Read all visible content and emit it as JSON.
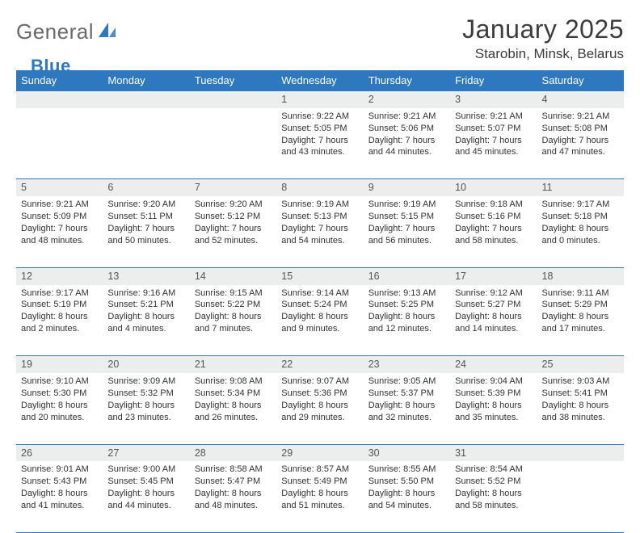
{
  "brand": {
    "part1": "General",
    "part2": "Blue"
  },
  "title": "January 2025",
  "location": "Starobin, Minsk, Belarus",
  "colors": {
    "accent": "#2d78bf",
    "header_bg": "#2d78bf",
    "daynum_bg": "#eceded",
    "text": "#333333"
  },
  "weekdays": [
    "Sunday",
    "Monday",
    "Tuesday",
    "Wednesday",
    "Thursday",
    "Friday",
    "Saturday"
  ],
  "weeks": [
    [
      null,
      null,
      null,
      {
        "n": "1",
        "sr": "Sunrise: 9:22 AM",
        "ss": "Sunset: 5:05 PM",
        "d1": "Daylight: 7 hours",
        "d2": "and 43 minutes."
      },
      {
        "n": "2",
        "sr": "Sunrise: 9:21 AM",
        "ss": "Sunset: 5:06 PM",
        "d1": "Daylight: 7 hours",
        "d2": "and 44 minutes."
      },
      {
        "n": "3",
        "sr": "Sunrise: 9:21 AM",
        "ss": "Sunset: 5:07 PM",
        "d1": "Daylight: 7 hours",
        "d2": "and 45 minutes."
      },
      {
        "n": "4",
        "sr": "Sunrise: 9:21 AM",
        "ss": "Sunset: 5:08 PM",
        "d1": "Daylight: 7 hours",
        "d2": "and 47 minutes."
      }
    ],
    [
      {
        "n": "5",
        "sr": "Sunrise: 9:21 AM",
        "ss": "Sunset: 5:09 PM",
        "d1": "Daylight: 7 hours",
        "d2": "and 48 minutes."
      },
      {
        "n": "6",
        "sr": "Sunrise: 9:20 AM",
        "ss": "Sunset: 5:11 PM",
        "d1": "Daylight: 7 hours",
        "d2": "and 50 minutes."
      },
      {
        "n": "7",
        "sr": "Sunrise: 9:20 AM",
        "ss": "Sunset: 5:12 PM",
        "d1": "Daylight: 7 hours",
        "d2": "and 52 minutes."
      },
      {
        "n": "8",
        "sr": "Sunrise: 9:19 AM",
        "ss": "Sunset: 5:13 PM",
        "d1": "Daylight: 7 hours",
        "d2": "and 54 minutes."
      },
      {
        "n": "9",
        "sr": "Sunrise: 9:19 AM",
        "ss": "Sunset: 5:15 PM",
        "d1": "Daylight: 7 hours",
        "d2": "and 56 minutes."
      },
      {
        "n": "10",
        "sr": "Sunrise: 9:18 AM",
        "ss": "Sunset: 5:16 PM",
        "d1": "Daylight: 7 hours",
        "d2": "and 58 minutes."
      },
      {
        "n": "11",
        "sr": "Sunrise: 9:17 AM",
        "ss": "Sunset: 5:18 PM",
        "d1": "Daylight: 8 hours",
        "d2": "and 0 minutes."
      }
    ],
    [
      {
        "n": "12",
        "sr": "Sunrise: 9:17 AM",
        "ss": "Sunset: 5:19 PM",
        "d1": "Daylight: 8 hours",
        "d2": "and 2 minutes."
      },
      {
        "n": "13",
        "sr": "Sunrise: 9:16 AM",
        "ss": "Sunset: 5:21 PM",
        "d1": "Daylight: 8 hours",
        "d2": "and 4 minutes."
      },
      {
        "n": "14",
        "sr": "Sunrise: 9:15 AM",
        "ss": "Sunset: 5:22 PM",
        "d1": "Daylight: 8 hours",
        "d2": "and 7 minutes."
      },
      {
        "n": "15",
        "sr": "Sunrise: 9:14 AM",
        "ss": "Sunset: 5:24 PM",
        "d1": "Daylight: 8 hours",
        "d2": "and 9 minutes."
      },
      {
        "n": "16",
        "sr": "Sunrise: 9:13 AM",
        "ss": "Sunset: 5:25 PM",
        "d1": "Daylight: 8 hours",
        "d2": "and 12 minutes."
      },
      {
        "n": "17",
        "sr": "Sunrise: 9:12 AM",
        "ss": "Sunset: 5:27 PM",
        "d1": "Daylight: 8 hours",
        "d2": "and 14 minutes."
      },
      {
        "n": "18",
        "sr": "Sunrise: 9:11 AM",
        "ss": "Sunset: 5:29 PM",
        "d1": "Daylight: 8 hours",
        "d2": "and 17 minutes."
      }
    ],
    [
      {
        "n": "19",
        "sr": "Sunrise: 9:10 AM",
        "ss": "Sunset: 5:30 PM",
        "d1": "Daylight: 8 hours",
        "d2": "and 20 minutes."
      },
      {
        "n": "20",
        "sr": "Sunrise: 9:09 AM",
        "ss": "Sunset: 5:32 PM",
        "d1": "Daylight: 8 hours",
        "d2": "and 23 minutes."
      },
      {
        "n": "21",
        "sr": "Sunrise: 9:08 AM",
        "ss": "Sunset: 5:34 PM",
        "d1": "Daylight: 8 hours",
        "d2": "and 26 minutes."
      },
      {
        "n": "22",
        "sr": "Sunrise: 9:07 AM",
        "ss": "Sunset: 5:36 PM",
        "d1": "Daylight: 8 hours",
        "d2": "and 29 minutes."
      },
      {
        "n": "23",
        "sr": "Sunrise: 9:05 AM",
        "ss": "Sunset: 5:37 PM",
        "d1": "Daylight: 8 hours",
        "d2": "and 32 minutes."
      },
      {
        "n": "24",
        "sr": "Sunrise: 9:04 AM",
        "ss": "Sunset: 5:39 PM",
        "d1": "Daylight: 8 hours",
        "d2": "and 35 minutes."
      },
      {
        "n": "25",
        "sr": "Sunrise: 9:03 AM",
        "ss": "Sunset: 5:41 PM",
        "d1": "Daylight: 8 hours",
        "d2": "and 38 minutes."
      }
    ],
    [
      {
        "n": "26",
        "sr": "Sunrise: 9:01 AM",
        "ss": "Sunset: 5:43 PM",
        "d1": "Daylight: 8 hours",
        "d2": "and 41 minutes."
      },
      {
        "n": "27",
        "sr": "Sunrise: 9:00 AM",
        "ss": "Sunset: 5:45 PM",
        "d1": "Daylight: 8 hours",
        "d2": "and 44 minutes."
      },
      {
        "n": "28",
        "sr": "Sunrise: 8:58 AM",
        "ss": "Sunset: 5:47 PM",
        "d1": "Daylight: 8 hours",
        "d2": "and 48 minutes."
      },
      {
        "n": "29",
        "sr": "Sunrise: 8:57 AM",
        "ss": "Sunset: 5:49 PM",
        "d1": "Daylight: 8 hours",
        "d2": "and 51 minutes."
      },
      {
        "n": "30",
        "sr": "Sunrise: 8:55 AM",
        "ss": "Sunset: 5:50 PM",
        "d1": "Daylight: 8 hours",
        "d2": "and 54 minutes."
      },
      {
        "n": "31",
        "sr": "Sunrise: 8:54 AM",
        "ss": "Sunset: 5:52 PM",
        "d1": "Daylight: 8 hours",
        "d2": "and 58 minutes."
      },
      null
    ]
  ]
}
